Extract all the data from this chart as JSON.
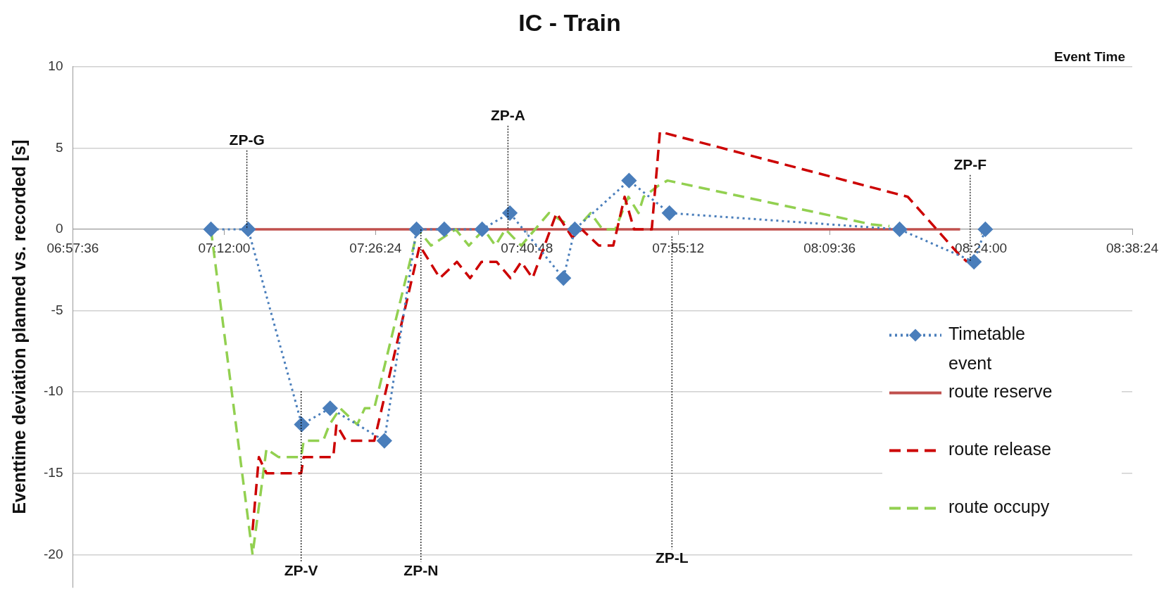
{
  "chart_data": {
    "type": "line",
    "title": "IC - Train",
    "xlabel": "Event Time",
    "ylabel": "Eventtime deviation planned vs. recorded [s]",
    "xlim": [
      6.96,
      8.64
    ],
    "xticks": [
      {
        "value": 6.96,
        "label": "06:57:36"
      },
      {
        "value": 7.2,
        "label": "07:12:00"
      },
      {
        "value": 7.44,
        "label": "07:26:24"
      },
      {
        "value": 7.68,
        "label": "07:40:48"
      },
      {
        "value": 7.92,
        "label": "07:55:12"
      },
      {
        "value": 8.16,
        "label": "08:09:36"
      },
      {
        "value": 8.4,
        "label": "08:24:00"
      },
      {
        "value": 8.64,
        "label": "08:38:24"
      }
    ],
    "ylim": [
      -22,
      10
    ],
    "yticks": [
      -20,
      -15,
      -10,
      -5,
      0,
      5,
      10
    ],
    "grid": "y",
    "legend": "bottom right",
    "series": [
      {
        "name": "Timetable event",
        "color": "#4a7ebb",
        "marker": "diamond",
        "line_style": "dotted",
        "x": [
          7.179,
          7.238,
          7.323,
          7.368,
          7.454,
          7.505,
          7.549,
          7.609,
          7.653,
          7.738,
          7.756,
          7.842,
          7.906,
          8.271,
          8.389,
          8.407
        ],
        "values": [
          0,
          0,
          -12,
          -11,
          -13,
          0,
          0,
          0,
          1,
          -3,
          0,
          3,
          1,
          0,
          -2,
          0
        ]
      },
      {
        "name": "route reserve",
        "color": "#c0504d",
        "marker": "none",
        "line_style": "solid",
        "x": [
          7.236,
          8.367
        ],
        "values": [
          0,
          0
        ]
      },
      {
        "name": "route release",
        "color": "#cc0000",
        "marker": "none",
        "line_style": "dashed",
        "x": [
          7.245,
          7.255,
          7.267,
          7.322,
          7.326,
          7.373,
          7.378,
          7.393,
          7.438,
          7.51,
          7.542,
          7.569,
          7.59,
          7.608,
          7.632,
          7.654,
          7.671,
          7.689,
          7.727,
          7.752,
          7.767,
          7.794,
          7.817,
          7.835,
          7.85,
          7.878,
          7.891,
          8.284,
          8.364,
          8.378
        ],
        "values": [
          -18.5,
          -14,
          -15,
          -15,
          -14,
          -14,
          -12,
          -13,
          -13,
          -1,
          -3,
          -2,
          -3,
          -2,
          -2,
          -3,
          -2,
          -3,
          1,
          -0.5,
          0,
          -1,
          -1,
          2,
          0,
          0,
          6,
          2,
          -1.5,
          -2
        ]
      },
      {
        "name": "route occupy",
        "color": "#92d050",
        "marker": "none",
        "line_style": "dashed",
        "x": [
          7.179,
          7.245,
          7.267,
          7.286,
          7.322,
          7.326,
          7.357,
          7.367,
          7.384,
          7.411,
          7.423,
          7.438,
          7.507,
          7.528,
          7.567,
          7.588,
          7.612,
          7.63,
          7.646,
          7.671,
          7.715,
          7.758,
          7.781,
          7.8,
          7.82,
          7.841,
          7.857,
          7.865,
          7.889,
          7.903,
          8.227,
          8.255
        ],
        "values": [
          0,
          -20,
          -13.5,
          -14,
          -14,
          -13,
          -13,
          -12,
          -11,
          -12,
          -11,
          -11,
          0,
          -1,
          0,
          -1,
          0,
          -1,
          0,
          -1,
          1,
          0,
          1,
          0,
          0,
          2,
          1,
          2,
          2.7,
          3,
          0.3,
          0.2
        ]
      }
    ],
    "ref_lines": [
      {
        "axis": "x",
        "value": 7.236,
        "label": "ZP-G"
      },
      {
        "axis": "x",
        "value": 7.322,
        "label": "ZP-V"
      },
      {
        "axis": "x",
        "value": 7.512,
        "label": "ZP-N"
      },
      {
        "axis": "x",
        "value": 7.65,
        "label": "ZP-A"
      },
      {
        "axis": "x",
        "value": 7.91,
        "label": "ZP-L"
      },
      {
        "axis": "x",
        "value": 8.383,
        "label": "ZP-F"
      }
    ]
  }
}
